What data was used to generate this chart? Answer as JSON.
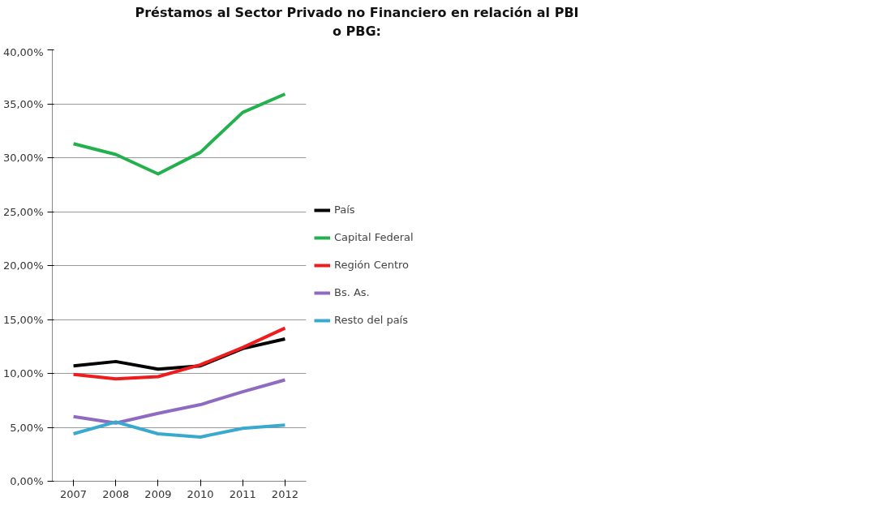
{
  "chart_data": {
    "type": "line",
    "title": "Préstamos al Sector Privado no Financiero en relación al PBI\no PBG:",
    "categories": [
      "2007",
      "2008",
      "2009",
      "2010",
      "2011",
      "2012"
    ],
    "series": [
      {
        "name": "País",
        "color": "#000000",
        "values": [
          10.7,
          11.1,
          10.4,
          10.7,
          12.3,
          13.2
        ]
      },
      {
        "name": "Capital Federal",
        "color": "#22b14c",
        "values": [
          31.3,
          30.3,
          28.5,
          30.5,
          34.2,
          35.9
        ]
      },
      {
        "name": "Región Centro",
        "color": "#ee1c1c",
        "values": [
          9.9,
          9.5,
          9.7,
          10.8,
          12.4,
          14.2
        ]
      },
      {
        "name": "Bs. As.",
        "color": "#8e6bc0",
        "values": [
          6.0,
          5.4,
          6.3,
          7.1,
          8.3,
          9.4
        ]
      },
      {
        "name": "Resto del país",
        "color": "#3aa9cf",
        "values": [
          4.4,
          5.5,
          4.4,
          4.1,
          4.9,
          5.2
        ]
      }
    ],
    "ylim": [
      0,
      40
    ],
    "yticks": [
      {
        "value": 0,
        "label": "0,00%"
      },
      {
        "value": 5,
        "label": "5,00%"
      },
      {
        "value": 10,
        "label": "10,00%"
      },
      {
        "value": 15,
        "label": "15,00%"
      },
      {
        "value": 20,
        "label": "20,00%"
      },
      {
        "value": 25,
        "label": "25,00%"
      },
      {
        "value": 30,
        "label": "30,00%"
      },
      {
        "value": 35,
        "label": "35,00%"
      },
      {
        "value": 40,
        "label": "40,00%"
      }
    ],
    "grid": "y",
    "legend": "right",
    "marker": "none",
    "line_style": "solid"
  }
}
